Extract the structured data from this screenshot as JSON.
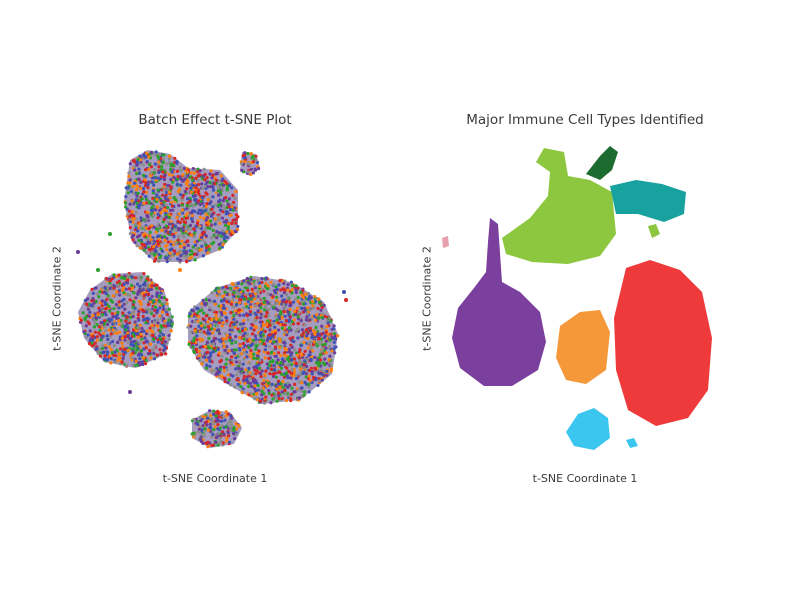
{
  "colors": {
    "batches": [
      "#6a3d9a",
      "#2ca02c",
      "#3f51b5",
      "#d62728",
      "#ff7f0e",
      "#8c8c8c"
    ],
    "cell_types": [
      "#8dc63f",
      "#1e6b2f",
      "#17a2a0",
      "#7b3f9e",
      "#f5983a",
      "#ee3a3a",
      "#3bc6f0",
      "#e8a0b0"
    ]
  },
  "chart_data": [
    {
      "type": "scatter",
      "title": "Batch Effect t-SNE Plot",
      "xlabel": "t-SNE Coordinate 1",
      "ylabel": "t-SNE Coordinate 2",
      "grid": false,
      "legend": "none"
    },
    {
      "type": "scatter",
      "title": "Major Immune Cell Types Identified",
      "xlabel": "t-SNE Coordinate 1",
      "ylabel": "t-SNE Coordinate 2",
      "grid": false,
      "legend": "none"
    }
  ]
}
